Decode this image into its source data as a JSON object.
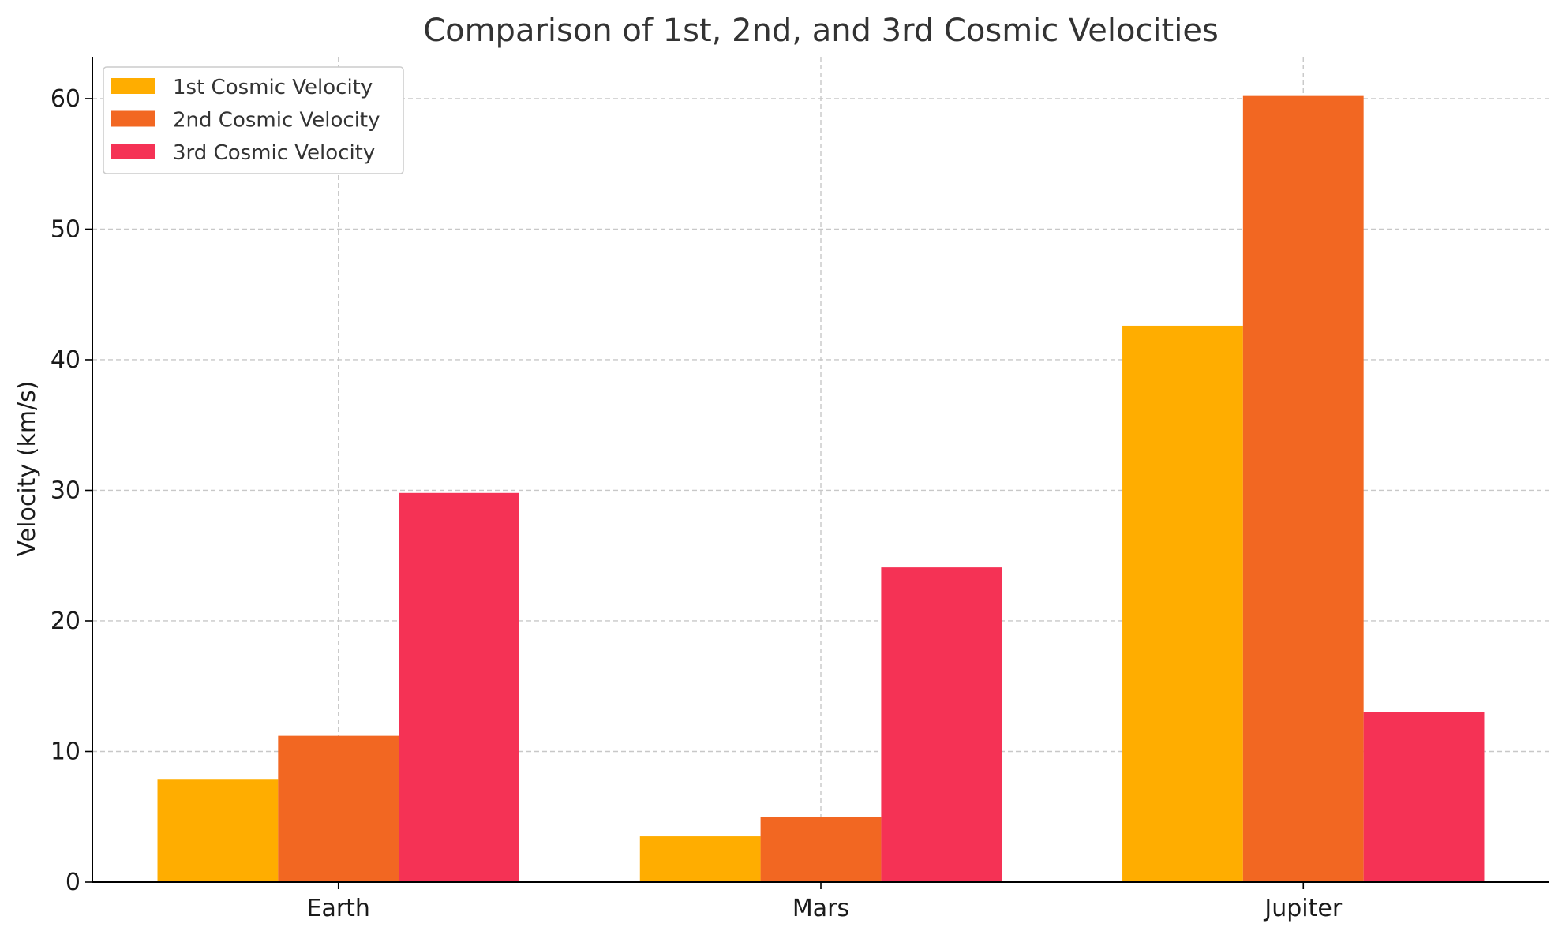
{
  "chart_data": {
    "type": "bar",
    "title": "Comparison of 1st, 2nd, and 3rd Cosmic Velocities",
    "xlabel": "",
    "ylabel": "Velocity (km/s)",
    "categories": [
      "Earth",
      "Mars",
      "Jupiter"
    ],
    "series": [
      {
        "name": "1st Cosmic Velocity",
        "color": "#ffad00",
        "values": [
          7.9,
          3.5,
          42.6
        ]
      },
      {
        "name": "2nd Cosmic Velocity",
        "color": "#f26722",
        "values": [
          11.2,
          5.0,
          60.2
        ]
      },
      {
        "name": "3rd Cosmic Velocity",
        "color": "#f53255",
        "values": [
          29.8,
          24.1,
          13.0
        ]
      }
    ],
    "ylim": [
      0,
      63.2
    ],
    "yticks": [
      "0",
      "10",
      "20",
      "30",
      "40",
      "50",
      "60"
    ],
    "grid": true,
    "legend_position": "top-left"
  }
}
